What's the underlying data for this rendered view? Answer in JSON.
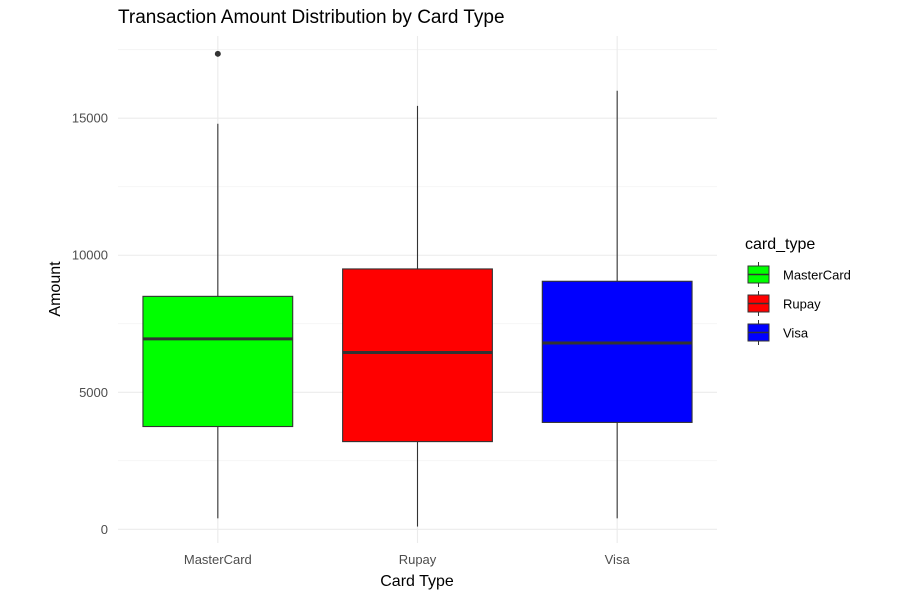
{
  "chart_data": {
    "type": "boxplot",
    "title": "Transaction Amount Distribution by Card Type",
    "xlabel": "Card Type",
    "ylabel": "Amount",
    "ylim": [
      -500,
      18000
    ],
    "yticks": [
      0,
      5000,
      10000,
      15000
    ],
    "ytick_labels": [
      "0",
      "5000",
      "10000",
      "15000"
    ],
    "grid": true,
    "legend": {
      "title": "card_type",
      "position": "right"
    },
    "categories": [
      "MasterCard",
      "Rupay",
      "Visa"
    ],
    "series": [
      {
        "name": "MasterCard",
        "color": "#00ff00",
        "whisker_low": 400,
        "q1": 3750,
        "median": 6950,
        "q3": 8500,
        "whisker_high": 14800,
        "outliers": [
          17350
        ]
      },
      {
        "name": "Rupay",
        "color": "#ff0000",
        "whisker_low": 100,
        "q1": 3200,
        "median": 6450,
        "q3": 9500,
        "whisker_high": 15450,
        "outliers": []
      },
      {
        "name": "Visa",
        "color": "#0000ff",
        "whisker_low": 400,
        "q1": 3900,
        "median": 6800,
        "q3": 9050,
        "whisker_high": 16000,
        "outliers": []
      }
    ]
  }
}
